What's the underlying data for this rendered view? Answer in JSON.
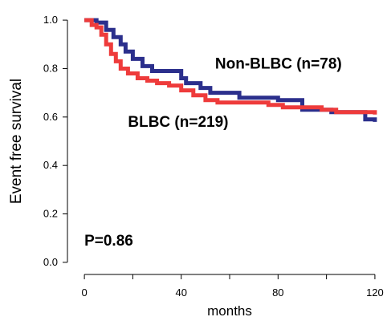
{
  "chart_data": {
    "type": "line",
    "title": "",
    "xlabel": "months",
    "ylabel": "Event free survival",
    "xlim": [
      -7,
      125
    ],
    "ylim": [
      -0.05,
      1.05
    ],
    "x_ticks": [
      0,
      20,
      40,
      60,
      80,
      100,
      120
    ],
    "x_tick_labels": [
      "0",
      "",
      "40",
      "",
      "80",
      "",
      "120"
    ],
    "y_ticks": [
      0.0,
      0.2,
      0.4,
      0.6,
      0.8,
      1.0
    ],
    "y_tick_labels": [
      "0.0",
      "0.2",
      "0.4",
      "0.6",
      "0.8",
      "1.0"
    ],
    "grid": false,
    "legend": "none",
    "series": [
      {
        "name": "Non-BLBC (n=78)",
        "color": "#2b2f8c",
        "step_points": [
          [
            0,
            1.0
          ],
          [
            5,
            0.99
          ],
          [
            9,
            0.96
          ],
          [
            12,
            0.93
          ],
          [
            15,
            0.9
          ],
          [
            17,
            0.87
          ],
          [
            20,
            0.84
          ],
          [
            24,
            0.81
          ],
          [
            28,
            0.79
          ],
          [
            36,
            0.79
          ],
          [
            40,
            0.76
          ],
          [
            42,
            0.74
          ],
          [
            48,
            0.72
          ],
          [
            52,
            0.7
          ],
          [
            60,
            0.7
          ],
          [
            64,
            0.68
          ],
          [
            78,
            0.68
          ],
          [
            80,
            0.67
          ],
          [
            86,
            0.67
          ],
          [
            90,
            0.63
          ],
          [
            102,
            0.62
          ],
          [
            108,
            0.62
          ],
          [
            116,
            0.59
          ],
          [
            120,
            0.58
          ]
        ]
      },
      {
        "name": "BLBC (n=219)",
        "color": "#ee3b3b",
        "step_points": [
          [
            0,
            1.0
          ],
          [
            3,
            0.98
          ],
          [
            5,
            0.97
          ],
          [
            7,
            0.94
          ],
          [
            9,
            0.9
          ],
          [
            11,
            0.86
          ],
          [
            13,
            0.83
          ],
          [
            15,
            0.8
          ],
          [
            18,
            0.78
          ],
          [
            22,
            0.76
          ],
          [
            26,
            0.75
          ],
          [
            30,
            0.74
          ],
          [
            35,
            0.73
          ],
          [
            40,
            0.71
          ],
          [
            45,
            0.69
          ],
          [
            50,
            0.67
          ],
          [
            55,
            0.66
          ],
          [
            64,
            0.66
          ],
          [
            72,
            0.66
          ],
          [
            76,
            0.65
          ],
          [
            82,
            0.64
          ],
          [
            90,
            0.64
          ],
          [
            98,
            0.63
          ],
          [
            104,
            0.62
          ],
          [
            112,
            0.62
          ],
          [
            118,
            0.62
          ],
          [
            120,
            0.61
          ]
        ]
      }
    ],
    "annotations": [
      {
        "text": "Non-BLBC (n=78)",
        "x": 54,
        "y": 0.8
      },
      {
        "text": "BLBC (n=219)",
        "x": 18,
        "y": 0.56
      },
      {
        "text": "P=0.86",
        "x": 0,
        "y": 0.07
      }
    ]
  }
}
